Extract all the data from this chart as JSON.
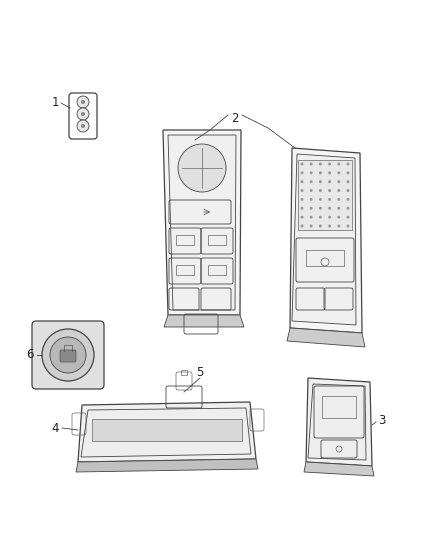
{
  "background_color": "#ffffff",
  "line_color": "#444444",
  "shadow_color": "#aaaaaa",
  "label_color": "#222222",
  "figsize": [
    4.38,
    5.33
  ],
  "dpi": 100,
  "label_fontsize": 8.5
}
